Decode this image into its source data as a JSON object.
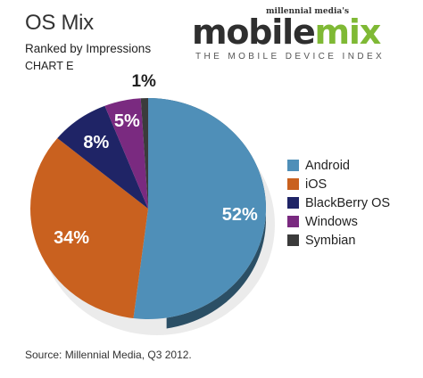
{
  "header": {
    "title": "OS Mix",
    "subtitle": "Ranked by Impressions",
    "chart_label": "CHART E"
  },
  "brand": {
    "small": "millennial media's",
    "name_part1": "mobile",
    "name_part2": "mix",
    "tagline": "THE MOBILE DEVICE INDEX",
    "colors": {
      "mobile": "#2f2f2f",
      "mix": "#7fb935"
    }
  },
  "chart_data": {
    "type": "pie",
    "title": "OS Mix",
    "subtitle": "Ranked by Impressions",
    "categories": [
      "Android",
      "iOS",
      "BlackBerry OS",
      "Windows",
      "Symbian"
    ],
    "values": [
      52,
      34,
      8,
      5,
      1
    ],
    "labels": [
      "52%",
      "34%",
      "8%",
      "5%",
      "1%"
    ],
    "colors": [
      "#4f8fb8",
      "#c9611f",
      "#1f2466",
      "#7a2a80",
      "#3b3b3b"
    ],
    "legend_position": "right"
  },
  "source": "Source: Millennial Media, Q3 2012."
}
